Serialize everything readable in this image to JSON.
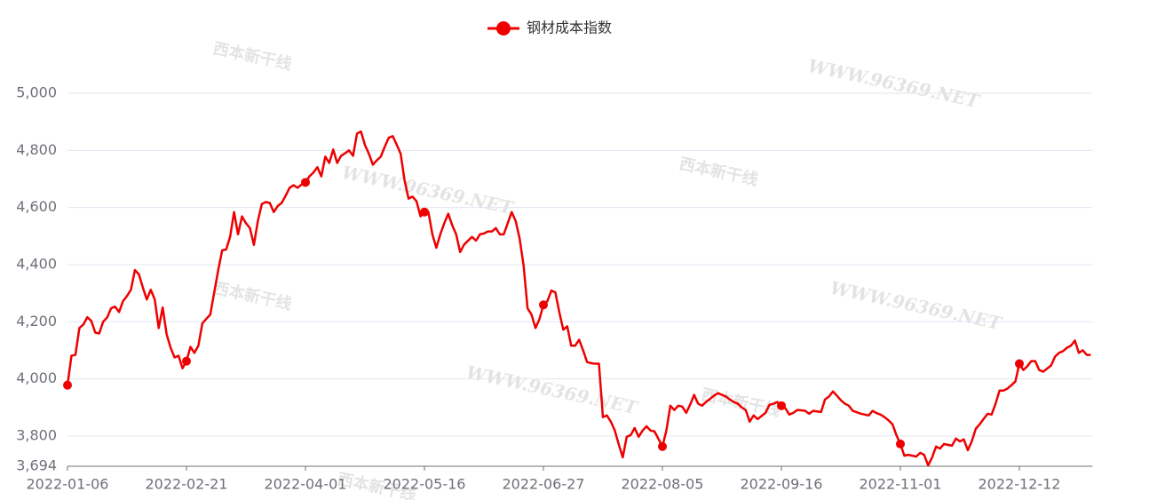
{
  "chart_data": {
    "type": "line",
    "watermark": "WWW.96369.NET",
    "logo": "西本新干线",
    "categories": [
      "2022-01-06",
      null,
      null,
      null,
      null,
      null,
      null,
      null,
      null,
      null,
      null,
      null,
      null,
      null,
      null,
      null,
      null,
      null,
      null,
      null,
      null,
      null,
      null,
      null,
      null,
      null,
      null,
      null,
      null,
      null,
      "2022-02-21",
      null,
      null,
      null,
      null,
      null,
      null,
      null,
      null,
      null,
      null,
      null,
      null,
      null,
      null,
      null,
      null,
      null,
      null,
      null,
      null,
      null,
      null,
      null,
      null,
      null,
      null,
      null,
      null,
      null,
      "2022-04-01",
      null,
      null,
      null,
      null,
      null,
      null,
      null,
      null,
      null,
      null,
      null,
      null,
      null,
      null,
      null,
      null,
      null,
      null,
      null,
      null,
      null,
      null,
      null,
      null,
      null,
      null,
      null,
      null,
      null,
      "2022-05-16",
      null,
      null,
      null,
      null,
      null,
      null,
      null,
      null,
      null,
      null,
      null,
      null,
      null,
      null,
      null,
      null,
      null,
      null,
      null,
      null,
      null,
      null,
      null,
      null,
      null,
      null,
      null,
      null,
      null,
      "2022-06-27",
      null,
      null,
      null,
      null,
      null,
      null,
      null,
      null,
      null,
      null,
      null,
      null,
      null,
      null,
      null,
      null,
      null,
      null,
      null,
      null,
      null,
      null,
      null,
      null,
      null,
      null,
      null,
      null,
      null,
      "2022-08-05",
      null,
      null,
      null,
      null,
      null,
      null,
      null,
      null,
      null,
      null,
      null,
      null,
      null,
      null,
      null,
      null,
      null,
      null,
      null,
      null,
      null,
      null,
      null,
      null,
      null,
      null,
      null,
      null,
      null,
      "2022-09-16",
      null,
      null,
      null,
      null,
      null,
      null,
      null,
      null,
      null,
      null,
      null,
      null,
      null,
      null,
      null,
      null,
      null,
      null,
      null,
      null,
      null,
      null,
      null,
      null,
      null,
      null,
      null,
      null,
      null,
      "2022-11-01",
      null,
      null,
      null,
      null,
      null,
      null,
      null,
      null,
      null,
      null,
      null,
      null,
      null,
      null,
      null,
      null,
      null,
      null,
      null,
      null,
      null,
      null,
      null,
      null,
      null,
      null,
      null,
      null,
      null,
      "2022-12-12",
      null,
      null,
      null,
      null,
      null,
      null,
      null,
      null,
      null,
      null,
      null,
      null,
      null,
      null,
      null,
      null,
      null,
      null
    ],
    "series": [
      {
        "name": "钢材成本指数",
        "color": "#ee0000",
        "values": [
          3978,
          4081,
          4084,
          4178,
          4190,
          4216,
          4203,
          4162,
          4159,
          4200,
          4215,
          4247,
          4253,
          4234,
          4272,
          4290,
          4312,
          4381,
          4366,
          4320,
          4278,
          4312,
          4278,
          4178,
          4250,
          4156,
          4109,
          4075,
          4081,
          4037,
          4062,
          4112,
          4091,
          4116,
          4194,
          4210,
          4225,
          4303,
          4380,
          4450,
          4453,
          4497,
          4584,
          4506,
          4569,
          4545,
          4528,
          4469,
          4553,
          4612,
          4619,
          4616,
          4584,
          4605,
          4616,
          4641,
          4669,
          4678,
          4669,
          4680,
          4688,
          4709,
          4722,
          4741,
          4709,
          4778,
          4756,
          4803,
          4756,
          4781,
          4790,
          4800,
          4781,
          4859,
          4866,
          4819,
          4788,
          4750,
          4765,
          4778,
          4813,
          4844,
          4850,
          4820,
          4788,
          4694,
          4631,
          4638,
          4622,
          4569,
          4584,
          4584,
          4506,
          4459,
          4506,
          4545,
          4578,
          4538,
          4506,
          4444,
          4470,
          4484,
          4497,
          4484,
          4506,
          4509,
          4516,
          4516,
          4528,
          4506,
          4506,
          4545,
          4584,
          4553,
          4491,
          4397,
          4247,
          4225,
          4178,
          4209,
          4259,
          4272,
          4309,
          4303,
          4234,
          4172,
          4184,
          4116,
          4116,
          4137,
          4100,
          4059,
          4055,
          4053,
          4053,
          3866,
          3872,
          3850,
          3819,
          3770,
          3725,
          3797,
          3803,
          3828,
          3797,
          3819,
          3834,
          3819,
          3816,
          3790,
          3763,
          3819,
          3906,
          3891,
          3906,
          3903,
          3881,
          3910,
          3944,
          3913,
          3906,
          3919,
          3930,
          3941,
          3950,
          3944,
          3938,
          3928,
          3919,
          3913,
          3900,
          3891,
          3850,
          3872,
          3859,
          3870,
          3881,
          3909,
          3913,
          3919,
          3906,
          3897,
          3875,
          3881,
          3891,
          3890,
          3888,
          3878,
          3888,
          3886,
          3884,
          3928,
          3938,
          3956,
          3941,
          3925,
          3913,
          3906,
          3888,
          3883,
          3878,
          3875,
          3872,
          3888,
          3880,
          3875,
          3866,
          3855,
          3841,
          3803,
          3772,
          3731,
          3734,
          3731,
          3728,
          3741,
          3734,
          3697,
          3725,
          3763,
          3756,
          3772,
          3769,
          3766,
          3791,
          3781,
          3788,
          3750,
          3781,
          3825,
          3841,
          3860,
          3878,
          3875,
          3913,
          3959,
          3959,
          3966,
          3978,
          3991,
          4053,
          4031,
          4044,
          4062,
          4062,
          4031,
          4025,
          4036,
          4047,
          4078,
          4091,
          4097,
          4109,
          4116,
          4134,
          4091,
          4100,
          4084,
          4084
        ]
      }
    ],
    "ylim": [
      3694,
      5000
    ],
    "yticks": [
      {
        "value": 3694,
        "label": "3,694"
      },
      {
        "value": 3800,
        "label": "3,800"
      },
      {
        "value": 4000,
        "label": "4,000"
      },
      {
        "value": 4200,
        "label": "4,200"
      },
      {
        "value": 4400,
        "label": "4,400"
      },
      {
        "value": 4600,
        "label": "4,600"
      },
      {
        "value": 4800,
        "label": "4,800"
      },
      {
        "value": 5000,
        "label": "5,000"
      }
    ],
    "grid": true,
    "legend": "top"
  }
}
